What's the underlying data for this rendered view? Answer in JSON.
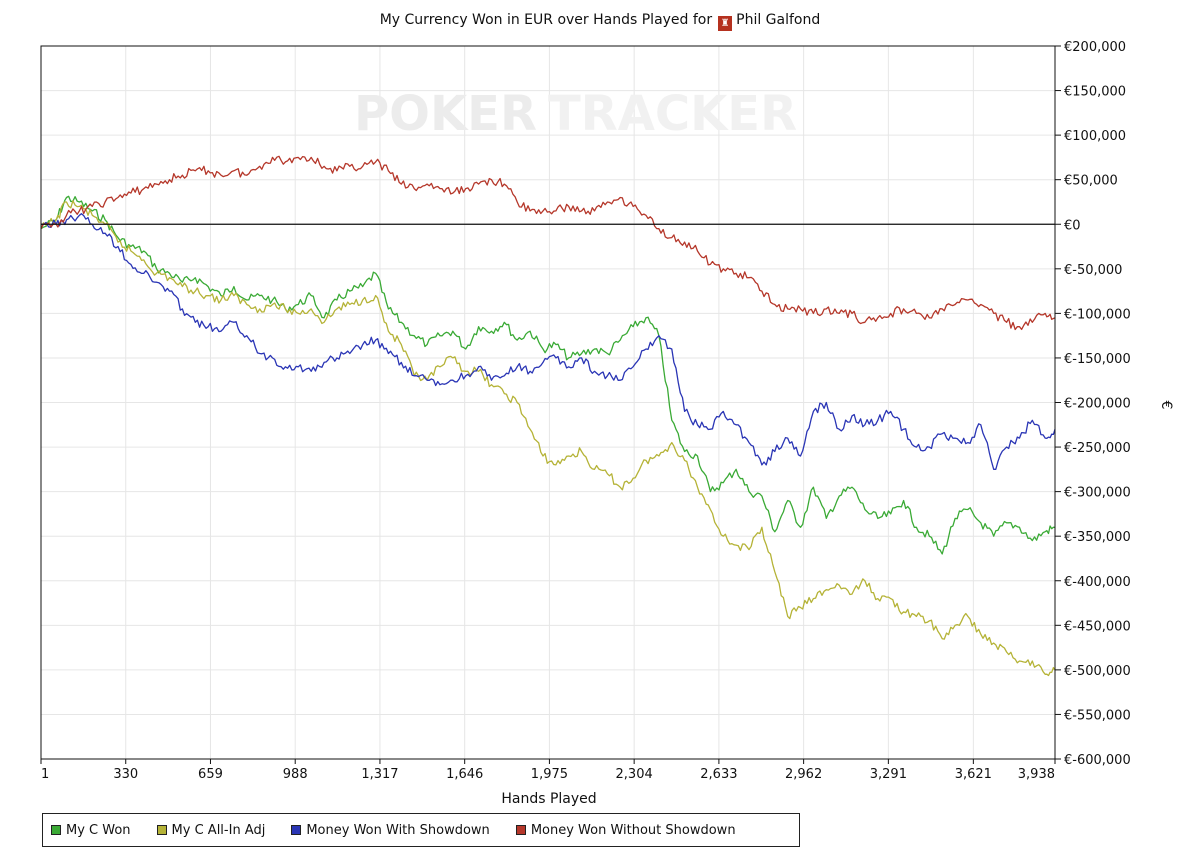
{
  "chart_title": "My Currency Won in EUR over Hands Played for",
  "player_name": "Phil Galfond",
  "player_icon": "chess-rook-icon",
  "watermark": {
    "left": "POKER",
    "right": "TRACKER"
  },
  "colors": {
    "my_c_won": "#3aaa35",
    "all_in_adj": "#b5b337",
    "showdown": "#2a35b5",
    "no_showdown": "#b5372a",
    "grid": "#e6e6e6"
  },
  "legend": [
    {
      "label": "My C Won",
      "color": "#3aaa35"
    },
    {
      "label": "My C All-In Adj",
      "color": "#b5b337"
    },
    {
      "label": "Money Won With Showdown",
      "color": "#2a35b5"
    },
    {
      "label": "Money Won Without Showdown",
      "color": "#b5372a"
    }
  ],
  "chart_data": {
    "type": "line",
    "title": "My Currency Won in EUR over Hands Played for Phil Galfond",
    "xlabel": "Hands Played",
    "ylabel": "€",
    "xlim": [
      1,
      3938
    ],
    "ylim": [
      -600000,
      200000
    ],
    "x_ticks": [
      "1",
      "330",
      "659",
      "988",
      "1,317",
      "1,646",
      "1,975",
      "2,304",
      "2,633",
      "2,962",
      "3,291",
      "3,621",
      "3,938"
    ],
    "x_tick_values": [
      1,
      330,
      659,
      988,
      1317,
      1646,
      1975,
      2304,
      2633,
      2962,
      3291,
      3621,
      3938
    ],
    "y_ticks": [
      "€200,000",
      "€150,000",
      "€100,000",
      "€50,000",
      "€0",
      "€-50,000",
      "€-100,000",
      "€-150,000",
      "€-200,000",
      "€-250,000",
      "€-300,000",
      "€-350,000",
      "€-400,000",
      "€-450,000",
      "€-500,000",
      "€-550,000",
      "€-600,000"
    ],
    "y_tick_values": [
      200000,
      150000,
      100000,
      50000,
      0,
      -50000,
      -100000,
      -150000,
      -200000,
      -250000,
      -300000,
      -350000,
      -400000,
      -450000,
      -500000,
      -550000,
      -600000
    ],
    "grid": true,
    "legend_position": "bottom",
    "series": [
      {
        "name": "My C Won",
        "color": "#3aaa35",
        "x": [
          1,
          60,
          100,
          150,
          200,
          250,
          300,
          350,
          400,
          450,
          500,
          550,
          600,
          650,
          700,
          750,
          800,
          850,
          900,
          950,
          1000,
          1050,
          1100,
          1150,
          1200,
          1250,
          1300,
          1350,
          1400,
          1450,
          1500,
          1550,
          1600,
          1650,
          1700,
          1750,
          1800,
          1850,
          1900,
          1950,
          2000,
          2050,
          2100,
          2150,
          2200,
          2250,
          2300,
          2350,
          2400,
          2450,
          2500,
          2550,
          2600,
          2650,
          2700,
          2750,
          2800,
          2850,
          2900,
          2950,
          3000,
          3050,
          3100,
          3150,
          3200,
          3250,
          3300,
          3350,
          3400,
          3450,
          3500,
          3550,
          3600,
          3650,
          3700,
          3750,
          3800,
          3850,
          3900,
          3938
        ],
        "y": [
          -5000,
          5000,
          30000,
          25000,
          15000,
          5000,
          -15000,
          -25000,
          -30000,
          -50000,
          -55000,
          -65000,
          -60000,
          -70000,
          -80000,
          -70000,
          -85000,
          -80000,
          -85000,
          -95000,
          -90000,
          -80000,
          -105000,
          -85000,
          -75000,
          -70000,
          -55000,
          -95000,
          -110000,
          -125000,
          -135000,
          -125000,
          -120000,
          -140000,
          -115000,
          -120000,
          -110000,
          -130000,
          -120000,
          -140000,
          -135000,
          -150000,
          -145000,
          -140000,
          -145000,
          -130000,
          -115000,
          -105000,
          -125000,
          -220000,
          -255000,
          -260000,
          -300000,
          -290000,
          -275000,
          -300000,
          -305000,
          -345000,
          -310000,
          -340000,
          -295000,
          -330000,
          -305000,
          -295000,
          -320000,
          -330000,
          -325000,
          -310000,
          -340000,
          -350000,
          -370000,
          -330000,
          -320000,
          -335000,
          -350000,
          -335000,
          -340000,
          -355000,
          -345000,
          -340000
        ]
      },
      {
        "name": "My C All-In Adj",
        "color": "#b5b337",
        "x": [
          1,
          60,
          100,
          150,
          200,
          250,
          300,
          350,
          400,
          450,
          500,
          550,
          600,
          650,
          700,
          750,
          800,
          850,
          900,
          950,
          1000,
          1050,
          1100,
          1150,
          1200,
          1250,
          1300,
          1350,
          1400,
          1450,
          1500,
          1550,
          1600,
          1650,
          1700,
          1750,
          1800,
          1850,
          1900,
          1950,
          2000,
          2050,
          2100,
          2150,
          2200,
          2250,
          2300,
          2350,
          2400,
          2450,
          2500,
          2550,
          2600,
          2650,
          2700,
          2750,
          2800,
          2850,
          2900,
          2950,
          3000,
          3050,
          3100,
          3150,
          3200,
          3250,
          3300,
          3350,
          3400,
          3450,
          3500,
          3550,
          3600,
          3650,
          3700,
          3750,
          3800,
          3850,
          3900,
          3938
        ],
        "y": [
          -5000,
          5000,
          25000,
          20000,
          10000,
          0,
          -20000,
          -30000,
          -40000,
          -55000,
          -60000,
          -70000,
          -75000,
          -80000,
          -85000,
          -80000,
          -90000,
          -95000,
          -90000,
          -95000,
          -100000,
          -95000,
          -110000,
          -95000,
          -90000,
          -85000,
          -80000,
          -120000,
          -135000,
          -170000,
          -175000,
          -160000,
          -150000,
          -165000,
          -165000,
          -180000,
          -190000,
          -200000,
          -230000,
          -260000,
          -270000,
          -260000,
          -255000,
          -275000,
          -280000,
          -295000,
          -285000,
          -265000,
          -260000,
          -245000,
          -265000,
          -295000,
          -320000,
          -350000,
          -360000,
          -365000,
          -340000,
          -390000,
          -440000,
          -430000,
          -420000,
          -410000,
          -405000,
          -415000,
          -400000,
          -420000,
          -420000,
          -435000,
          -440000,
          -445000,
          -465000,
          -450000,
          -440000,
          -460000,
          -470000,
          -480000,
          -490000,
          -490000,
          -505000,
          -500000
        ]
      },
      {
        "name": "Money Won With Showdown",
        "color": "#2a35b5",
        "x": [
          1,
          60,
          100,
          150,
          200,
          250,
          300,
          350,
          400,
          450,
          500,
          550,
          600,
          650,
          700,
          750,
          800,
          850,
          900,
          950,
          1000,
          1050,
          1100,
          1150,
          1200,
          1250,
          1300,
          1350,
          1400,
          1450,
          1500,
          1550,
          1600,
          1650,
          1700,
          1750,
          1800,
          1850,
          1900,
          1950,
          2000,
          2050,
          2100,
          2150,
          2200,
          2250,
          2300,
          2350,
          2400,
          2450,
          2500,
          2550,
          2600,
          2650,
          2700,
          2750,
          2800,
          2850,
          2900,
          2950,
          3000,
          3050,
          3100,
          3150,
          3200,
          3250,
          3300,
          3350,
          3400,
          3450,
          3500,
          3550,
          3600,
          3650,
          3700,
          3750,
          3800,
          3850,
          3900,
          3938
        ],
        "y": [
          0,
          0,
          5000,
          10000,
          0,
          -10000,
          -25000,
          -45000,
          -55000,
          -65000,
          -75000,
          -95000,
          -110000,
          -115000,
          -120000,
          -110000,
          -125000,
          -145000,
          -150000,
          -160000,
          -160000,
          -165000,
          -155000,
          -150000,
          -145000,
          -135000,
          -130000,
          -145000,
          -155000,
          -170000,
          -175000,
          -180000,
          -175000,
          -170000,
          -160000,
          -175000,
          -170000,
          -160000,
          -165000,
          -155000,
          -150000,
          -160000,
          -150000,
          -165000,
          -170000,
          -175000,
          -160000,
          -140000,
          -125000,
          -140000,
          -210000,
          -225000,
          -230000,
          -210000,
          -225000,
          -245000,
          -270000,
          -255000,
          -240000,
          -260000,
          -210000,
          -200000,
          -230000,
          -215000,
          -225000,
          -220000,
          -210000,
          -230000,
          -250000,
          -250000,
          -235000,
          -240000,
          -245000,
          -225000,
          -275000,
          -250000,
          -240000,
          -220000,
          -240000,
          -230000
        ]
      },
      {
        "name": "Money Won Without Showdown",
        "color": "#b5372a",
        "x": [
          1,
          60,
          100,
          150,
          200,
          250,
          300,
          350,
          400,
          450,
          500,
          550,
          600,
          650,
          700,
          750,
          800,
          850,
          900,
          950,
          1000,
          1050,
          1100,
          1150,
          1200,
          1250,
          1300,
          1350,
          1400,
          1450,
          1500,
          1550,
          1600,
          1650,
          1700,
          1750,
          1800,
          1850,
          1900,
          1950,
          2000,
          2050,
          2100,
          2150,
          2200,
          2250,
          2300,
          2350,
          2400,
          2450,
          2500,
          2550,
          2600,
          2650,
          2700,
          2750,
          2800,
          2850,
          2900,
          2950,
          3000,
          3050,
          3100,
          3150,
          3200,
          3250,
          3300,
          3350,
          3400,
          3450,
          3500,
          3550,
          3600,
          3650,
          3700,
          3750,
          3800,
          3850,
          3900,
          3938
        ],
        "y": [
          -5000,
          0,
          10000,
          15000,
          20000,
          25000,
          30000,
          35000,
          40000,
          45000,
          50000,
          55000,
          60000,
          60000,
          55000,
          60000,
          55000,
          65000,
          75000,
          70000,
          75000,
          75000,
          65000,
          60000,
          65000,
          65000,
          70000,
          60000,
          45000,
          40000,
          45000,
          40000,
          35000,
          40000,
          45000,
          50000,
          45000,
          25000,
          15000,
          15000,
          15000,
          20000,
          15000,
          15000,
          25000,
          30000,
          20000,
          10000,
          -5000,
          -15000,
          -20000,
          -30000,
          -45000,
          -50000,
          -55000,
          -60000,
          -75000,
          -90000,
          -95000,
          -95000,
          -100000,
          -95000,
          -100000,
          -100000,
          -110000,
          -105000,
          -100000,
          -95000,
          -100000,
          -105000,
          -95000,
          -90000,
          -85000,
          -90000,
          -100000,
          -110000,
          -115000,
          -110000,
          -100000,
          -105000
        ]
      }
    ]
  }
}
